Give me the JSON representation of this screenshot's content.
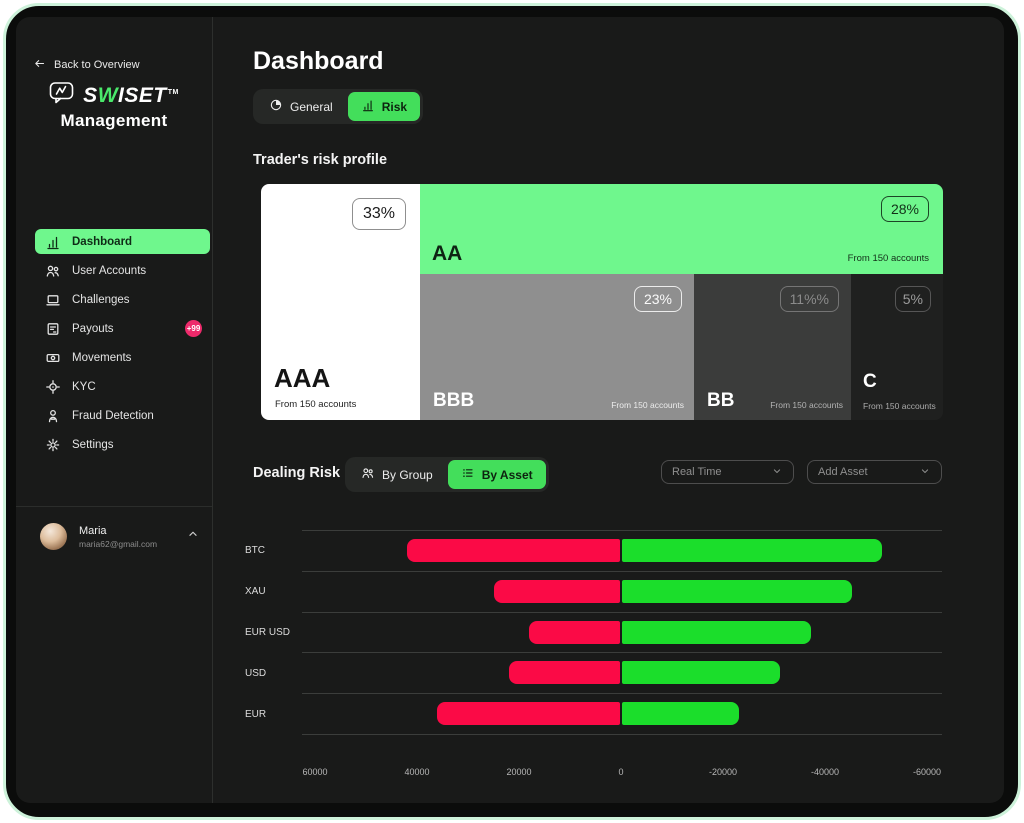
{
  "brand": {
    "back_label": "Back to Overview",
    "name_pre": "S",
    "name_w": "W",
    "name_post": "ISET",
    "tm": "TM",
    "subtitle": "Management"
  },
  "sidebar": {
    "items": [
      {
        "label": "Dashboard",
        "icon": "bar-chart",
        "active": true
      },
      {
        "label": "User Accounts",
        "icon": "users"
      },
      {
        "label": "Challenges",
        "icon": "laptop"
      },
      {
        "label": "Payouts",
        "icon": "invoice",
        "badge": "+99"
      },
      {
        "label": "Movements",
        "icon": "banknote"
      },
      {
        "label": "KYC",
        "icon": "target"
      },
      {
        "label": "Fraud Detection",
        "icon": "detective"
      },
      {
        "label": "Settings",
        "icon": "gear"
      }
    ],
    "user": {
      "name": "Maria",
      "email": "maria62@gmail.com"
    }
  },
  "header": {
    "title": "Dashboard",
    "tabs": [
      {
        "label": "General",
        "icon": "pie",
        "active": false
      },
      {
        "label": "Risk",
        "icon": "bar-chart",
        "active": true
      }
    ]
  },
  "risk_profile": {
    "title": "Trader's risk profile",
    "blocks": [
      {
        "name": "AAA",
        "percent": "33%",
        "note": "From 150 accounts"
      },
      {
        "name": "AA",
        "percent": "28%",
        "note": "From 150 accounts"
      },
      {
        "name": "BBB",
        "percent": "23%",
        "note": "From 150 accounts"
      },
      {
        "name": "BB",
        "percent": "11%%",
        "note": "From 150 accounts"
      },
      {
        "name": "C",
        "percent": "5%",
        "note": "From 150 accounts"
      }
    ]
  },
  "dealing": {
    "title": "Dealing Risk",
    "toggles": [
      {
        "label": "By Group",
        "icon": "users",
        "active": false
      },
      {
        "label": "By Asset",
        "icon": "list",
        "active": true
      }
    ],
    "filters": [
      {
        "value": "Real Time"
      },
      {
        "value": "Add Asset"
      }
    ]
  },
  "chart_data": {
    "type": "bar",
    "orientation": "horizontal",
    "x_axis_reversed": true,
    "categories": [
      "BTC",
      "XAU",
      "EUR USD",
      "USD",
      "EUR"
    ],
    "series": [
      {
        "name": "positive-exposure",
        "color": "#fb0a46",
        "values": [
          42000,
          25000,
          18000,
          22000,
          36000
        ]
      },
      {
        "name": "negative-exposure",
        "color": "#1bde2b",
        "values": [
          -51000,
          -45000,
          -37000,
          -31000,
          -23000
        ]
      }
    ],
    "x_ticks": [
      60000,
      40000,
      20000,
      0,
      -20000,
      -40000,
      -60000
    ],
    "xlim": [
      62500,
      -62500
    ],
    "grid": "horizontal"
  },
  "colors": {
    "accent_green_light": "#6ff78d",
    "accent_green": "#43de5b",
    "bar_red": "#fb0a46",
    "bar_green": "#1bde2b",
    "badge_pink": "#ed2a6b",
    "background": "#191a19"
  }
}
